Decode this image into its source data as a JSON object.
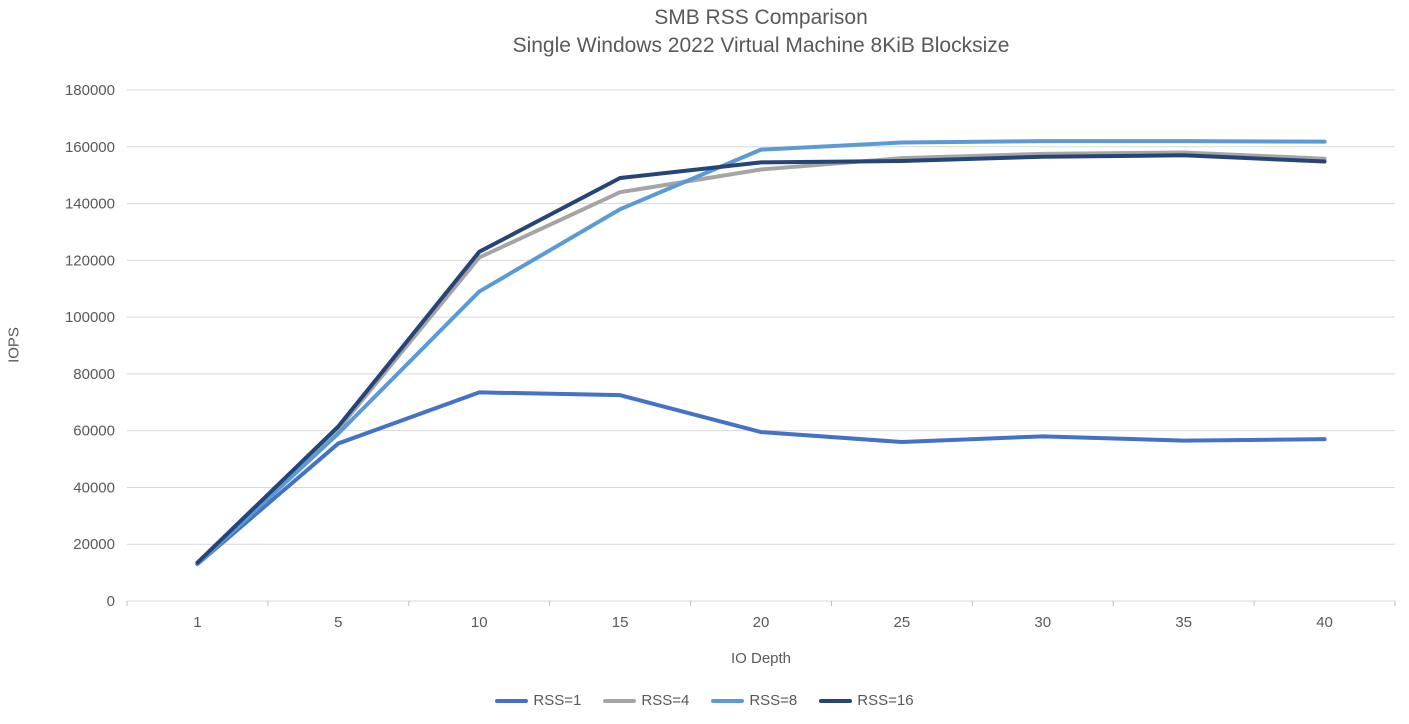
{
  "chart_data": {
    "type": "line",
    "title": "SMB RSS Comparison",
    "subtitle": "Single Windows 2022 Virtual Machine 8KiB Blocksize",
    "xlabel": "IO Depth",
    "ylabel": "IOPS",
    "categories": [
      1,
      5,
      10,
      15,
      20,
      25,
      30,
      35,
      40
    ],
    "ylim": [
      0,
      180000
    ],
    "y_tick_step": 20000,
    "y_tick_labels": [
      "0",
      "20000",
      "40000",
      "60000",
      "80000",
      "100000",
      "120000",
      "140000",
      "160000",
      "180000"
    ],
    "grid": "horizontal",
    "legend_position": "bottom",
    "series": [
      {
        "name": "RSS=1",
        "color": "#4472C4",
        "values": [
          13000,
          55500,
          73500,
          72500,
          59500,
          56000,
          58000,
          56500,
          57000
        ]
      },
      {
        "name": "RSS=4",
        "color": "#A5A5A5",
        "values": [
          13000,
          60500,
          121000,
          144000,
          152000,
          156000,
          157500,
          158000,
          155800
        ]
      },
      {
        "name": "RSS=8",
        "color": "#5B9BD5",
        "values": [
          13000,
          59000,
          109000,
          138000,
          159000,
          161500,
          162000,
          162000,
          161800
        ]
      },
      {
        "name": "RSS=16",
        "color": "#264478",
        "values": [
          13500,
          61500,
          123000,
          149000,
          154500,
          155000,
          156500,
          157000,
          154800
        ]
      }
    ],
    "style": {
      "gridline_color": "#D9D9D9",
      "axis_line_color": "#D9D9D9",
      "tick_color": "#BFBFBF",
      "tick_label_color": "#595959",
      "title_color": "#595959",
      "background": "#FFFFFF",
      "line_width": 4
    }
  }
}
